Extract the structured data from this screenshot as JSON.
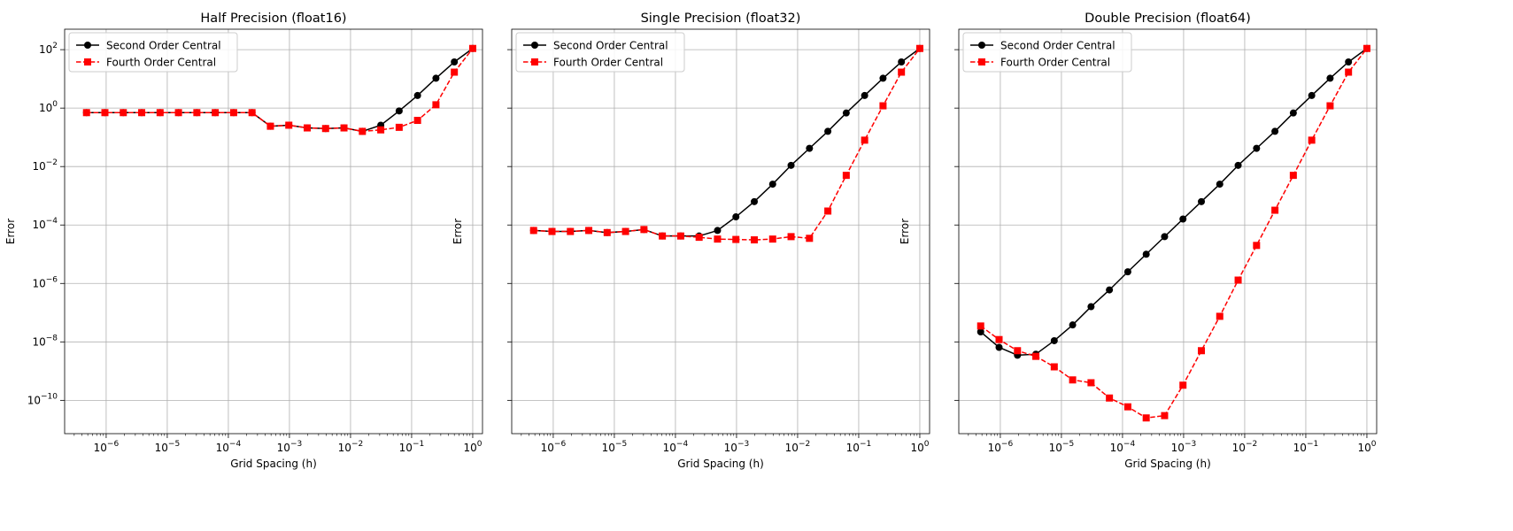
{
  "chart_data": [
    {
      "type": "line",
      "title": "Half Precision (float16)",
      "xlabel": "Grid Spacing (h)",
      "ylabel": "Error",
      "x_scale": "log",
      "y_scale": "log",
      "x_tick_labels": [
        "10^-6",
        "10^-5",
        "10^-4",
        "10^-3",
        "10^-2",
        "10^-1",
        "10^0"
      ],
      "y_tick_labels": [
        "10^-10",
        "10^-8",
        "10^-6",
        "10^-4",
        "10^-2",
        "10^0",
        "10^2"
      ],
      "grid": true,
      "legend_position": "upper-left",
      "series": [
        {
          "name": "Second Order Central",
          "color": "#000000",
          "line_style": "solid",
          "marker": "circle",
          "x": [
            "1/2^21",
            "1/2^20",
            "1/2^19",
            "1/2^18",
            "1/2^17",
            "1/2^16",
            "1/2^15",
            "1/2^14",
            "1/2^13",
            "1/2^12",
            "1/2^11",
            "1/2^10",
            "1/2^9",
            "1/2^8",
            "1/2^7",
            "1/2^6",
            "1/2^5",
            "1/2^4",
            "1/2^3",
            "1/2^2",
            "1/2^1",
            "1"
          ],
          "y": [
            0.7,
            0.7,
            0.7,
            0.7,
            0.7,
            0.7,
            0.7,
            0.7,
            0.7,
            0.7,
            0.24,
            0.26,
            0.21,
            0.2,
            0.21,
            0.16,
            0.26,
            0.8,
            2.7,
            10.5,
            38,
            110
          ]
        },
        {
          "name": "Fourth Order Central",
          "color": "#ff0000",
          "line_style": "dashed",
          "marker": "square",
          "x": [
            "1/2^21",
            "1/2^20",
            "1/2^19",
            "1/2^18",
            "1/2^17",
            "1/2^16",
            "1/2^15",
            "1/2^14",
            "1/2^13",
            "1/2^12",
            "1/2^11",
            "1/2^10",
            "1/2^9",
            "1/2^8",
            "1/2^7",
            "1/2^6",
            "1/2^5",
            "1/2^4",
            "1/2^3",
            "1/2^2",
            "1/2^1",
            "1"
          ],
          "y": [
            0.7,
            0.7,
            0.7,
            0.7,
            0.7,
            0.7,
            0.7,
            0.7,
            0.7,
            0.7,
            0.24,
            0.26,
            0.21,
            0.2,
            0.21,
            0.16,
            0.18,
            0.22,
            0.38,
            1.3,
            17,
            110
          ]
        }
      ]
    },
    {
      "type": "line",
      "title": "Single Precision (float32)",
      "xlabel": "Grid Spacing (h)",
      "ylabel": "Error",
      "x_scale": "log",
      "y_scale": "log",
      "x_tick_labels": [
        "10^-6",
        "10^-5",
        "10^-4",
        "10^-3",
        "10^-2",
        "10^-1",
        "10^0"
      ],
      "grid": true,
      "legend_position": "upper-left",
      "series": [
        {
          "name": "Second Order Central",
          "color": "#000000",
          "line_style": "solid",
          "marker": "circle",
          "x": [
            "1/2^21",
            "1/2^20",
            "1/2^19",
            "1/2^18",
            "1/2^17",
            "1/2^16",
            "1/2^15",
            "1/2^14",
            "1/2^13",
            "1/2^12",
            "1/2^11",
            "1/2^10",
            "1/2^9",
            "1/2^8",
            "1/2^7",
            "1/2^6",
            "1/2^5",
            "1/2^4",
            "1/2^3",
            "1/2^2",
            "1/2^1",
            "1"
          ],
          "y": [
            6.5e-05,
            6e-05,
            6e-05,
            6.5e-05,
            5.5e-05,
            6e-05,
            7e-05,
            4.2e-05,
            4.2e-05,
            4.2e-05,
            6.5e-05,
            0.00019,
            0.00063,
            0.0025,
            0.011,
            0.042,
            0.16,
            0.68,
            2.7,
            10.5,
            38,
            110
          ]
        },
        {
          "name": "Fourth Order Central",
          "color": "#ff0000",
          "line_style": "dashed",
          "marker": "square",
          "x": [
            "1/2^21",
            "1/2^20",
            "1/2^19",
            "1/2^18",
            "1/2^17",
            "1/2^16",
            "1/2^15",
            "1/2^14",
            "1/2^13",
            "1/2^12",
            "1/2^11",
            "1/2^10",
            "1/2^9",
            "1/2^8",
            "1/2^7",
            "1/2^6",
            "1/2^5",
            "1/2^4",
            "1/2^3",
            "1/2^2",
            "1/2^1",
            "1"
          ],
          "y": [
            6.5e-05,
            6e-05,
            6e-05,
            6.5e-05,
            5.5e-05,
            6e-05,
            7e-05,
            4.2e-05,
            4.2e-05,
            3.8e-05,
            3.3e-05,
            3.2e-05,
            3.1e-05,
            3.3e-05,
            4e-05,
            3.5e-05,
            0.0003,
            0.005,
            0.08,
            1.2,
            17,
            110
          ]
        }
      ]
    },
    {
      "type": "line",
      "title": "Double Precision (float64)",
      "xlabel": "Grid Spacing (h)",
      "ylabel": "Error",
      "x_scale": "log",
      "y_scale": "log",
      "x_tick_labels": [
        "10^-6",
        "10^-5",
        "10^-4",
        "10^-3",
        "10^-2",
        "10^-1",
        "10^0"
      ],
      "grid": true,
      "legend_position": "upper-left",
      "series": [
        {
          "name": "Second Order Central",
          "color": "#000000",
          "line_style": "solid",
          "marker": "circle",
          "x": [
            "1/2^21",
            "1/2^20",
            "1/2^19",
            "1/2^18",
            "1/2^17",
            "1/2^16",
            "1/2^15",
            "1/2^14",
            "1/2^13",
            "1/2^12",
            "1/2^11",
            "1/2^10",
            "1/2^9",
            "1/2^8",
            "1/2^7",
            "1/2^6",
            "1/2^5",
            "1/2^4",
            "1/2^3",
            "1/2^2",
            "1/2^1",
            "1"
          ],
          "y": [
            2.2e-08,
            6.5e-09,
            3.5e-09,
            3.8e-09,
            1.1e-08,
            3.8e-08,
            1.6e-07,
            6e-07,
            2.5e-06,
            1e-05,
            4e-05,
            0.00016,
            0.00063,
            0.0025,
            0.011,
            0.042,
            0.16,
            0.68,
            2.7,
            10.5,
            38,
            110
          ]
        },
        {
          "name": "Fourth Order Central",
          "color": "#ff0000",
          "line_style": "dashed",
          "marker": "square",
          "x": [
            "1/2^21",
            "1/2^20",
            "1/2^19",
            "1/2^18",
            "1/2^17",
            "1/2^16",
            "1/2^15",
            "1/2^14",
            "1/2^13",
            "1/2^12",
            "1/2^11",
            "1/2^10",
            "1/2^9",
            "1/2^8",
            "1/2^7",
            "1/2^6",
            "1/2^5",
            "1/2^4",
            "1/2^3",
            "1/2^2",
            "1/2^1",
            "1"
          ],
          "y": [
            3.5e-08,
            1.2e-08,
            5e-09,
            3.2e-09,
            1.4e-09,
            5e-10,
            4e-10,
            1.2e-10,
            6e-11,
            2.5e-11,
            3e-11,
            3.3e-10,
            5e-09,
            7.5e-08,
            1.3e-06,
            2e-05,
            0.00032,
            0.005,
            0.08,
            1.2,
            17,
            110
          ]
        }
      ]
    }
  ]
}
